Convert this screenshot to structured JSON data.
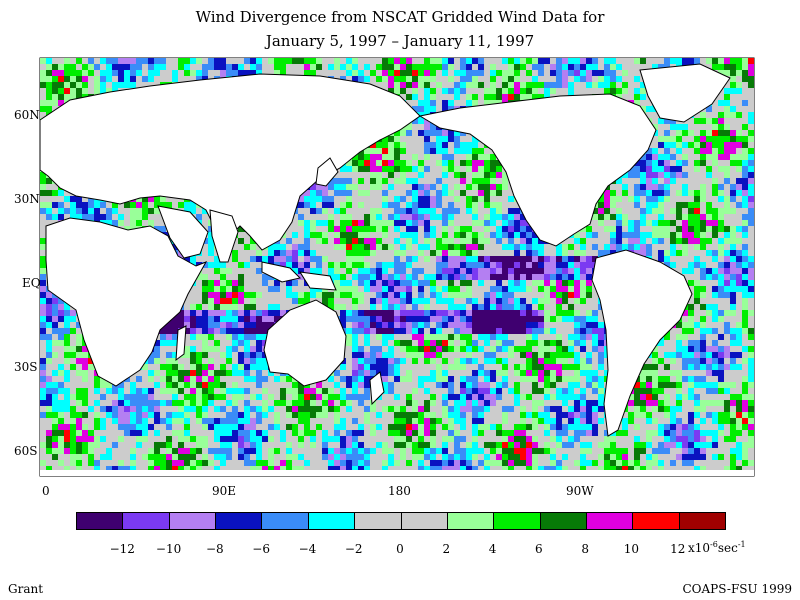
{
  "title_line1": "Wind Divergence from NSCAT Gridded Wind Data for",
  "title_line2": "January 5, 1997 – January 11, 1997",
  "latitude_labels": [
    "60N",
    "30N",
    "EQ",
    "30S",
    "60S"
  ],
  "longitude_labels": [
    "0",
    "90E",
    "180",
    "90W"
  ],
  "colorbar": {
    "colors": [
      "#3f0070",
      "#7b3af2",
      "#b47ff2",
      "#0a12c0",
      "#3a8cf8",
      "#00ffff",
      "#cccccc",
      "#cccccc",
      "#99ff99",
      "#00ee00",
      "#077a07",
      "#e000e0",
      "#ff0000",
      "#a00000"
    ],
    "tick_labels": [
      "-12",
      "-10",
      "-8",
      "-6",
      "-4",
      "-2",
      "0",
      "2",
      "4",
      "6",
      "8",
      "10",
      "12"
    ]
  },
  "unit_prefix": "x10",
  "unit_exponent": "-6",
  "unit_suffix": "sec",
  "unit_suffix_exponent": "-1",
  "author": "Grant",
  "credit": "COAPS-FSU 1999",
  "chart_data": {
    "type": "heatmap",
    "title": "Wind Divergence from NSCAT Gridded Wind Data for January 5, 1997 – January 11, 1997",
    "x_axis": {
      "ticks": [
        "0",
        "90E",
        "180",
        "90W"
      ],
      "range": [
        0,
        360
      ]
    },
    "y_axis": {
      "ticks": [
        "60N",
        "30N",
        "EQ",
        "30S",
        "60S"
      ],
      "range": [
        -70,
        70
      ]
    },
    "color_scale": {
      "min": -14,
      "max": 14,
      "step": 2
    }
  }
}
